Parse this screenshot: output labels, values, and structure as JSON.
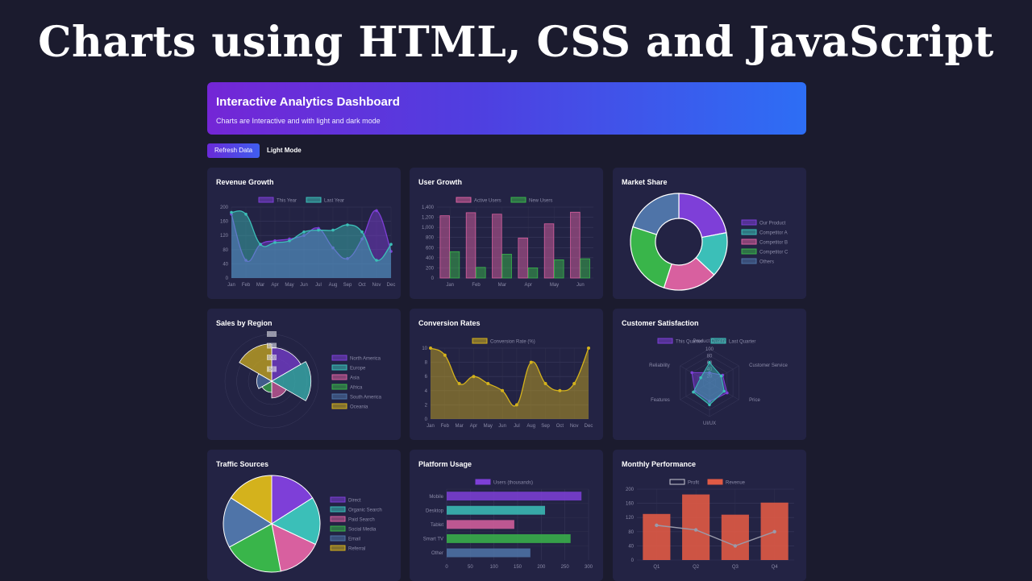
{
  "header": {
    "title": "Charts using HTML, CSS and JavaScript"
  },
  "banner": {
    "title": "Interactive Analytics Dashboard",
    "subtitle": "Charts are Interactive and with light and dark mode"
  },
  "toolbar": {
    "refresh_label": "Refresh Data",
    "light_label": "Light Mode"
  },
  "colors": {
    "purple": "#7e3fd8",
    "teal": "#3bbfb8",
    "pink": "#d8609f",
    "green": "#39b54a",
    "steel": "#4f74a8",
    "gold": "#d4b21c",
    "red": "#e05a45",
    "grey": "#9a9aaa"
  },
  "chart_data": [
    {
      "id": "revenue",
      "type": "area",
      "title": "Revenue Growth",
      "categories": [
        "Jan",
        "Feb",
        "Mar",
        "Apr",
        "May",
        "Jun",
        "Jul",
        "Aug",
        "Sep",
        "Oct",
        "Nov",
        "Dec"
      ],
      "series": [
        {
          "name": "This Year",
          "values": [
            180,
            50,
            95,
            105,
            110,
            120,
            140,
            85,
            55,
            110,
            190,
            75
          ]
        },
        {
          "name": "Last Year",
          "values": [
            185,
            180,
            95,
            100,
            105,
            130,
            135,
            135,
            150,
            130,
            50,
            95
          ]
        }
      ],
      "yticks": [
        "0",
        "40",
        "80",
        "120",
        "160",
        "200"
      ],
      "ylim": [
        0,
        200
      ]
    },
    {
      "id": "users",
      "type": "bar",
      "title": "User Growth",
      "categories": [
        "Jan",
        "Feb",
        "Mar",
        "Apr",
        "May",
        "Jun"
      ],
      "series": [
        {
          "name": "Active Users",
          "values": [
            1230,
            1290,
            1260,
            790,
            1070,
            1300
          ]
        },
        {
          "name": "New Users",
          "values": [
            520,
            210,
            470,
            200,
            360,
            380
          ]
        }
      ],
      "yticks": [
        "0",
        "200",
        "400",
        "600",
        "800",
        "1,000",
        "1,200",
        "1,400"
      ],
      "ylim": [
        0,
        1400
      ]
    },
    {
      "id": "market",
      "type": "doughnut",
      "title": "Market Share",
      "labels": [
        "Our Product",
        "Competitor A",
        "Competitor B",
        "Competitor C",
        "Others"
      ],
      "values": [
        22,
        15,
        18,
        25,
        20
      ]
    },
    {
      "id": "region",
      "type": "polarArea",
      "title": "Sales by Region",
      "labels": [
        "North America",
        "Europe",
        "Asia",
        "Africa",
        "South America",
        "Oceania"
      ],
      "values": [
        180,
        210,
        90,
        60,
        80,
        200
      ],
      "rticks": [
        "50",
        "100",
        "150",
        "200"
      ],
      "rmax": 250
    },
    {
      "id": "conversion",
      "type": "line",
      "title": "Conversion Rates",
      "categories": [
        "Jan",
        "Feb",
        "Mar",
        "Apr",
        "May",
        "Jun",
        "Jul",
        "Aug",
        "Sep",
        "Oct",
        "Nov",
        "Dec"
      ],
      "series": [
        {
          "name": "Conversion Rate (%)",
          "values": [
            10,
            9,
            5,
            6,
            5,
            4,
            2,
            8,
            5,
            4,
            5,
            10
          ]
        }
      ],
      "yticks": [
        "0",
        "2",
        "4",
        "6",
        "8",
        "10"
      ],
      "ylim": [
        0,
        10
      ]
    },
    {
      "id": "satisfaction",
      "type": "radar",
      "title": "Customer Satisfaction",
      "labels": [
        "Product Quality",
        "Customer Service",
        "Price",
        "UI/UX",
        "Features",
        "Reliability"
      ],
      "series": [
        {
          "name": "This Quarter",
          "values": [
            30,
            45,
            60,
            55,
            50,
            60
          ]
        },
        {
          "name": "Last Quarter",
          "values": [
            60,
            40,
            50,
            65,
            55,
            30
          ]
        }
      ],
      "rticks": [
        "20",
        "40",
        "60",
        "80",
        "100"
      ],
      "rmax": 100
    },
    {
      "id": "traffic",
      "type": "pie",
      "title": "Traffic Sources",
      "labels": [
        "Direct",
        "Organic Search",
        "Paid Search",
        "Social Media",
        "Email",
        "Referral"
      ],
      "values": [
        16,
        16,
        15,
        20,
        17,
        16
      ]
    },
    {
      "id": "platform",
      "type": "bar",
      "orientation": "horizontal",
      "title": "Platform Usage",
      "categories": [
        "Mobile",
        "Desktop",
        "Tablet",
        "Smart TV",
        "Other"
      ],
      "series": [
        {
          "name": "Users (thousands)",
          "values": [
            285,
            208,
            143,
            262,
            177
          ]
        }
      ],
      "xticks": [
        "0",
        "50",
        "100",
        "150",
        "200",
        "250",
        "300"
      ],
      "xlim": [
        0,
        300
      ]
    },
    {
      "id": "monthly",
      "type": "bar",
      "title": "Monthly Performance",
      "categories": [
        "Q1",
        "Q2",
        "Q3",
        "Q4"
      ],
      "series": [
        {
          "name": "Profit",
          "type": "line",
          "values": [
            98,
            85,
            40,
            80
          ]
        },
        {
          "name": "Revenue",
          "values": [
            130,
            185,
            128,
            162
          ]
        }
      ],
      "yticks": [
        "0",
        "40",
        "80",
        "120",
        "160",
        "200"
      ],
      "ylim": [
        0,
        200
      ]
    }
  ]
}
